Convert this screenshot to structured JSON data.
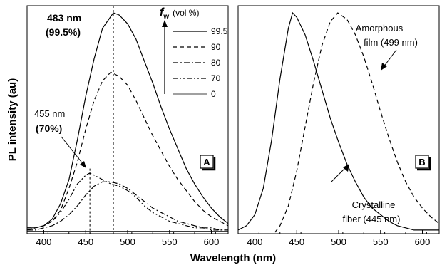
{
  "chart_data": [
    {
      "type": "line",
      "panel_label": "A",
      "x_range": [
        380,
        620
      ],
      "x_ticks": [
        400,
        450,
        500,
        550,
        600
      ],
      "ylabel": "PL intensity (au)",
      "xlabel": "Wavelength (nm)",
      "y_ticks_shown": false,
      "legend_title_main": "f",
      "legend_title_sub": "w",
      "legend_title_unit": "(vol %)",
      "legend_placement": "top-right",
      "series": [
        {
          "name": "99.5",
          "style": "solid",
          "points": [
            [
              380,
              0.02
            ],
            [
              390,
              0.02
            ],
            [
              400,
              0.03
            ],
            [
              410,
              0.06
            ],
            [
              420,
              0.13
            ],
            [
              430,
              0.24
            ],
            [
              440,
              0.42
            ],
            [
              450,
              0.62
            ],
            [
              460,
              0.79
            ],
            [
              470,
              0.93
            ],
            [
              483,
              1.0
            ],
            [
              490,
              0.99
            ],
            [
              500,
              0.95
            ],
            [
              510,
              0.88
            ],
            [
              520,
              0.78
            ],
            [
              530,
              0.68
            ],
            [
              540,
              0.57
            ],
            [
              550,
              0.47
            ],
            [
              560,
              0.38
            ],
            [
              570,
              0.29
            ],
            [
              580,
              0.22
            ],
            [
              590,
              0.16
            ],
            [
              600,
              0.11
            ],
            [
              610,
              0.07
            ],
            [
              620,
              0.04
            ]
          ]
        },
        {
          "name": "90",
          "style": "dashed",
          "points": [
            [
              380,
              0.02
            ],
            [
              390,
              0.02
            ],
            [
              400,
              0.03
            ],
            [
              410,
              0.05
            ],
            [
              420,
              0.1
            ],
            [
              430,
              0.2
            ],
            [
              440,
              0.32
            ],
            [
              450,
              0.47
            ],
            [
              460,
              0.6
            ],
            [
              470,
              0.69
            ],
            [
              480,
              0.73
            ],
            [
              490,
              0.71
            ],
            [
              500,
              0.67
            ],
            [
              510,
              0.6
            ],
            [
              520,
              0.52
            ],
            [
              530,
              0.44
            ],
            [
              540,
              0.37
            ],
            [
              550,
              0.3
            ],
            [
              560,
              0.24
            ],
            [
              570,
              0.19
            ],
            [
              580,
              0.14
            ],
            [
              590,
              0.1
            ],
            [
              600,
              0.07
            ],
            [
              610,
              0.05
            ],
            [
              620,
              0.03
            ]
          ]
        },
        {
          "name": "80",
          "style": "dashdot",
          "points": [
            [
              380,
              0.01
            ],
            [
              390,
              0.01
            ],
            [
              400,
              0.02
            ],
            [
              410,
              0.03
            ],
            [
              420,
              0.05
            ],
            [
              430,
              0.08
            ],
            [
              440,
              0.12
            ],
            [
              450,
              0.17
            ],
            [
              460,
              0.21
            ],
            [
              470,
              0.23
            ],
            [
              480,
              0.23
            ],
            [
              490,
              0.22
            ],
            [
              500,
              0.2
            ],
            [
              510,
              0.17
            ],
            [
              520,
              0.14
            ],
            [
              530,
              0.11
            ],
            [
              540,
              0.09
            ],
            [
              550,
              0.07
            ],
            [
              560,
              0.05
            ],
            [
              570,
              0.04
            ],
            [
              580,
              0.03
            ],
            [
              590,
              0.02
            ],
            [
              600,
              0.02
            ],
            [
              610,
              0.01
            ],
            [
              620,
              0.01
            ]
          ]
        },
        {
          "name": "70",
          "style": "dashdotdot",
          "points": [
            [
              380,
              0.01
            ],
            [
              390,
              0.02
            ],
            [
              400,
              0.03
            ],
            [
              410,
              0.05
            ],
            [
              420,
              0.09
            ],
            [
              430,
              0.15
            ],
            [
              440,
              0.22
            ],
            [
              450,
              0.26
            ],
            [
              455,
              0.27
            ],
            [
              460,
              0.26
            ],
            [
              470,
              0.24
            ],
            [
              480,
              0.22
            ],
            [
              490,
              0.21
            ],
            [
              500,
              0.19
            ],
            [
              510,
              0.16
            ],
            [
              520,
              0.12
            ],
            [
              530,
              0.09
            ],
            [
              540,
              0.07
            ],
            [
              550,
              0.05
            ],
            [
              560,
              0.04
            ],
            [
              570,
              0.03
            ],
            [
              580,
              0.02
            ],
            [
              590,
              0.02
            ],
            [
              600,
              0.01
            ],
            [
              610,
              0.01
            ],
            [
              620,
              0.01
            ]
          ]
        },
        {
          "name": "0",
          "style": "solid-thin",
          "points": [
            [
              380,
              0.005
            ],
            [
              620,
              0.005
            ]
          ]
        }
      ],
      "annotations": {
        "peak1_value": "483 nm",
        "peak1_pct": "(99.5%)",
        "peak2_value": "455 nm",
        "peak2_pct": "(70%)"
      },
      "reference_lines_x": [
        483,
        455
      ]
    },
    {
      "type": "line",
      "panel_label": "B",
      "x_range": [
        380,
        620
      ],
      "x_ticks": [
        400,
        450,
        500,
        550,
        600
      ],
      "y_ticks_shown": false,
      "series": [
        {
          "style": "solid",
          "points": [
            [
              380,
              0.01
            ],
            [
              390,
              0.03
            ],
            [
              400,
              0.08
            ],
            [
              410,
              0.2
            ],
            [
              420,
              0.42
            ],
            [
              430,
              0.7
            ],
            [
              440,
              0.93
            ],
            [
              445,
              1.0
            ],
            [
              450,
              0.98
            ],
            [
              460,
              0.9
            ],
            [
              470,
              0.78
            ],
            [
              480,
              0.65
            ],
            [
              490,
              0.52
            ],
            [
              500,
              0.41
            ],
            [
              510,
              0.31
            ],
            [
              520,
              0.23
            ],
            [
              530,
              0.16
            ],
            [
              540,
              0.11
            ],
            [
              550,
              0.08
            ],
            [
              560,
              0.05
            ],
            [
              570,
              0.03
            ],
            [
              580,
              0.02
            ],
            [
              590,
              0.01
            ],
            [
              600,
              0.01
            ],
            [
              610,
              0.01
            ],
            [
              620,
              0.01
            ]
          ]
        },
        {
          "style": "dashed",
          "points": [
            [
              424,
              0.0
            ],
            [
              430,
              0.03
            ],
            [
              440,
              0.12
            ],
            [
              450,
              0.28
            ],
            [
              460,
              0.48
            ],
            [
              470,
              0.68
            ],
            [
              480,
              0.85
            ],
            [
              490,
              0.96
            ],
            [
              499,
              1.0
            ],
            [
              510,
              0.97
            ],
            [
              520,
              0.9
            ],
            [
              530,
              0.8
            ],
            [
              540,
              0.68
            ],
            [
              550,
              0.55
            ],
            [
              560,
              0.43
            ],
            [
              570,
              0.32
            ],
            [
              580,
              0.23
            ],
            [
              590,
              0.16
            ],
            [
              600,
              0.11
            ],
            [
              610,
              0.07
            ],
            [
              620,
              0.04
            ]
          ]
        }
      ],
      "annotations": {
        "amorphous_line1": "Amorphous",
        "amorphous_line2": "film (499 nm)",
        "crystalline_line1": "Crystalline",
        "crystalline_line2": "fiber (445 nm)"
      }
    }
  ]
}
